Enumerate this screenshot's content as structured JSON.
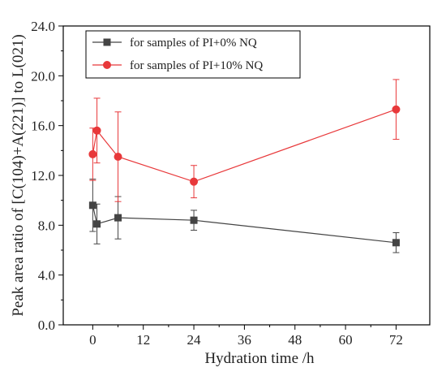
{
  "chart_data": {
    "type": "line",
    "xlabel": "Hydration time /h",
    "ylabel": "Peak area ratio of [C(104)+A(221)] to L(021)",
    "xlim": [
      -7,
      80
    ],
    "ylim": [
      0,
      24
    ],
    "xticks": [
      0,
      12,
      24,
      36,
      48,
      60,
      72
    ],
    "xtick_labels": [
      "0",
      "12",
      "24",
      "36",
      "48",
      "60",
      "72"
    ],
    "yticks": [
      0,
      4,
      8,
      12,
      16,
      20,
      24
    ],
    "ytick_labels": [
      "0.0",
      "4.0",
      "8.0",
      "12.0",
      "16.0",
      "20.0",
      "24.0"
    ],
    "grid": false,
    "legend_position": "top-left",
    "series": [
      {
        "name": "for samples of PI+0% NQ",
        "color": "#444444",
        "marker": "square",
        "x": [
          0,
          1,
          6,
          24,
          72
        ],
        "y": [
          9.6,
          8.1,
          8.6,
          8.4,
          6.6
        ],
        "err": [
          2.1,
          1.6,
          1.7,
          0.8,
          0.8
        ]
      },
      {
        "name": "for samples of PI+10% NQ",
        "color": "#e8383a",
        "marker": "circle",
        "x": [
          0,
          1,
          6,
          24,
          72
        ],
        "y": [
          13.7,
          15.6,
          13.5,
          11.5,
          17.3
        ],
        "err": [
          2.1,
          2.6,
          3.6,
          1.3,
          2.4
        ]
      }
    ]
  }
}
